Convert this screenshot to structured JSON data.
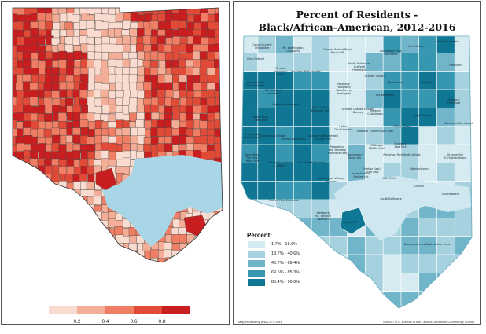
{
  "left_map": {
    "colors": {
      "light": "#f9dbcf",
      "low": "#f4ae97",
      "mid": "#ef7e64",
      "high": "#e04a37",
      "top": "#c81e1f",
      "water": "#a8d6e6",
      "boundary": "#4a4a4a"
    },
    "colorbar": {
      "values": [
        0.0,
        0.2,
        0.4,
        0.6,
        0.8,
        1.0
      ],
      "tick_labels": [
        "0.2",
        "0.4",
        "0.6",
        "0.8"
      ]
    }
  },
  "right_map": {
    "title_line1": "Percent of Residents -",
    "title_line2": "Black/African-American, 2012-2016",
    "legend_title": "Percent:",
    "legend": [
      {
        "label": "1.7% - 18.6%",
        "color": "#d5ebf1"
      },
      {
        "label": "18.7% - 40.6%",
        "color": "#a6d1de"
      },
      {
        "label": "40.7% - 69.4%",
        "color": "#70b5ca"
      },
      {
        "label": "69.5% - 85.3%",
        "color": "#3797b0"
      },
      {
        "label": "85.4% - 96.6%",
        "color": "#0f7794"
      }
    ],
    "water_color": "#cfe7ef",
    "footer_left": "Map created by BNIA-JFI, 2018",
    "footer_right": "Source: U.S. Bureau of the Census, American Community Survey",
    "neighborhoods": [
      "Cross-Country/ Cheswolde",
      "Mt. Washington/ Coldspring",
      "Glen-Fallstaff",
      "Greater Roland Park/ Poplar Hill",
      "North Baltimore/ Guilford/ Homeland",
      "Chinquapin Park/ Belvedere",
      "Loch Raven",
      "Harford/Echodale",
      "Hamilton",
      "Pimlico/ Arlington/ Hilltop",
      "Southern Park Heights",
      "Howard Park/ West Arlington",
      "Dorchester/ Ashburton",
      "Medfield/ Hampden/ Woodberry/ Remington",
      "Greater Govans",
      "Northwood",
      "Lauraville",
      "Cedonia/ Frankford",
      "Greater Mondawmin",
      "Penn North/ Reservoir Hill",
      "The Waverlies",
      "Greater Charles Village/ Barclay",
      "Midway/ Coldstream",
      "Belair-Edison",
      "Claremont/Armistead",
      "Forest Park/ Walbrook",
      "Greater Rosemont",
      "Sandtown-Winchester/ Harlem Park",
      "Upton/ Druid Heights",
      "Midtown",
      "Greenmount East",
      "Clifton-Berea",
      "Dickeyville/ Franklintown",
      "Edmondson Village",
      "Beechfield/ Ten Hills/ West Hills",
      "Allendale/Irvington/ S. Hilton",
      "Southwest Baltimore",
      "Poppleton/ The Terraces/ Hollins Market",
      "Downtown/ Seton Hill",
      "Oldtown/ Middle East",
      "Madison/ East End",
      "Patterson Park North & East",
      "Harbor East/ Little Italy",
      "Orangeville/ E. Highlandtown",
      "Highlandtown",
      "Fells Point",
      "Washington Village/ Pigtown",
      "Inner Harbor/ Federal Hill",
      "South Baltimore",
      "Canton",
      "Southeastern",
      "Morrell Park/Violetville",
      "Westport/ Mt. Winans/ Lakeland",
      "Cherry Hill",
      "Brooklyn/Curtis Bay/Hawkins Point"
    ]
  }
}
